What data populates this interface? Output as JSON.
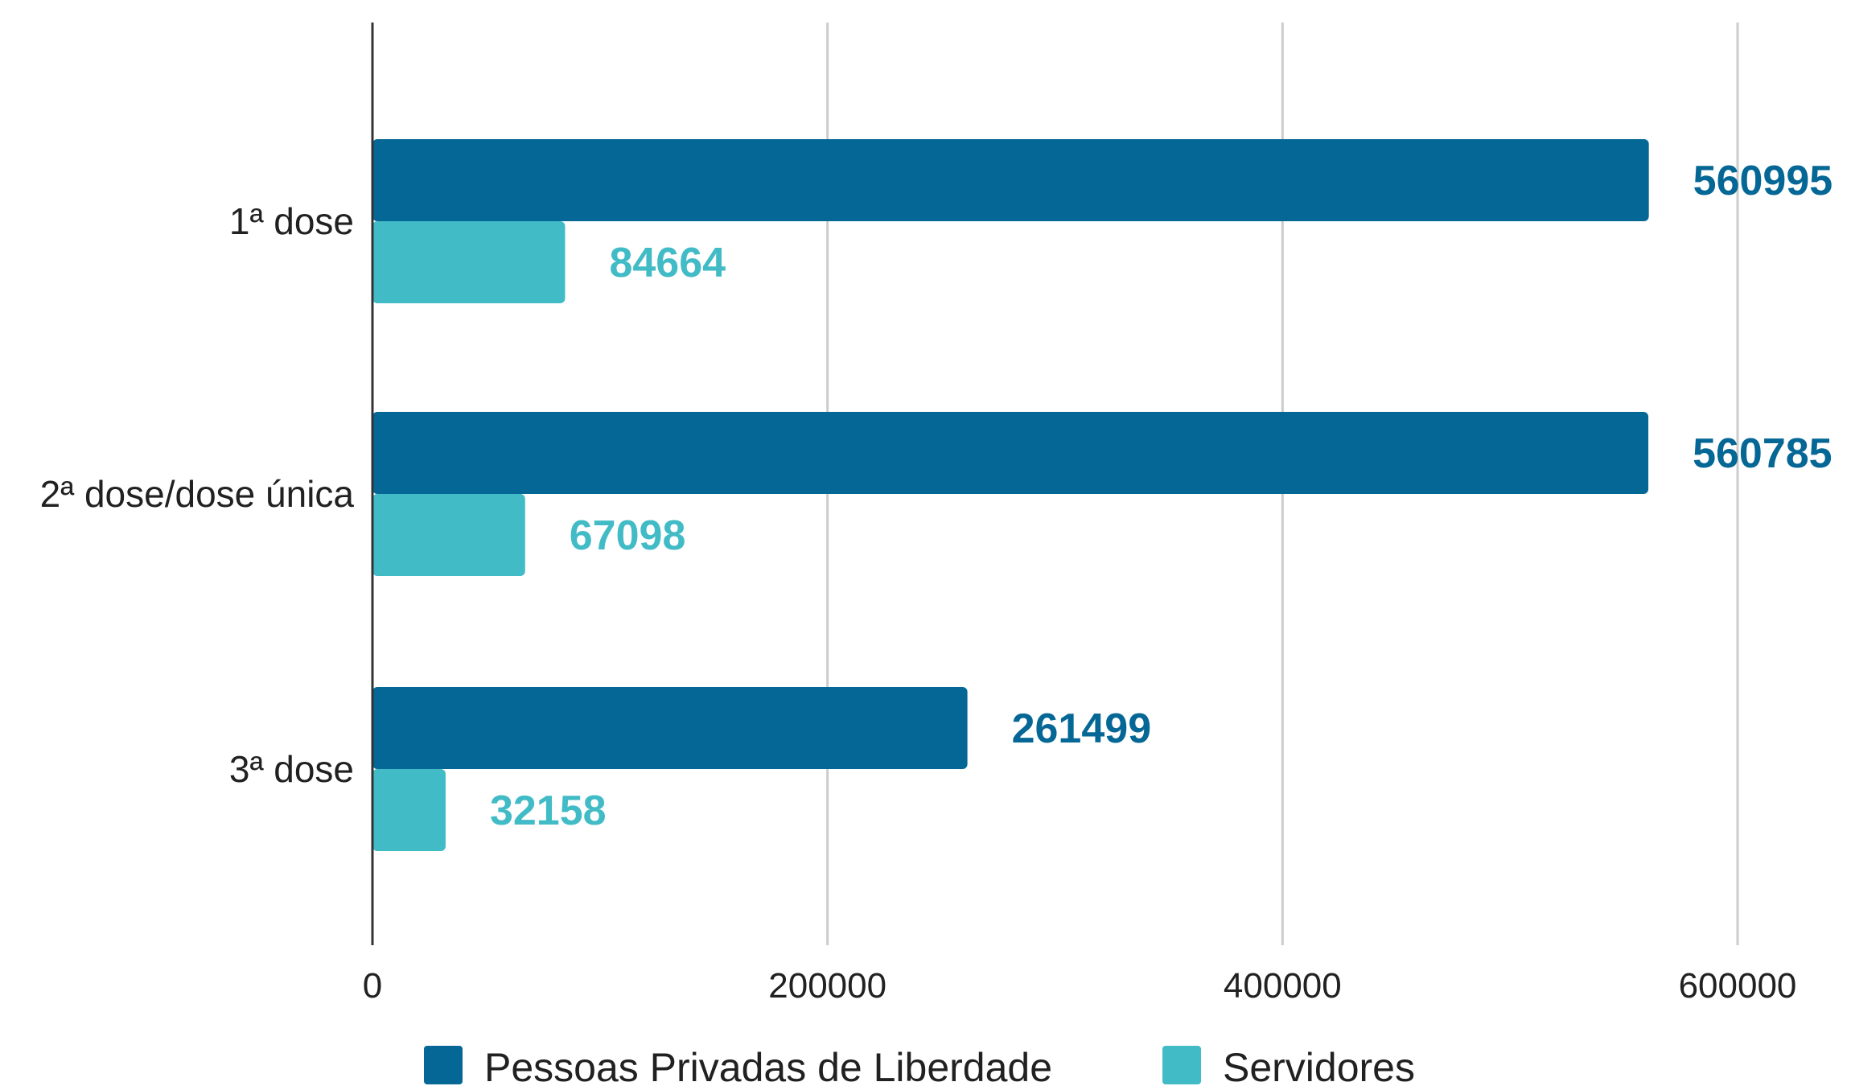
{
  "chart_data": {
    "type": "bar",
    "orientation": "horizontal",
    "categories": [
      "1ª dose",
      "2ª dose/dose única",
      "3ª dose"
    ],
    "series": [
      {
        "name": "Pessoas Privadas de Liberdade",
        "color": "#056795",
        "values": [
          560995,
          560785,
          261499
        ],
        "labels": [
          "560995",
          "560785",
          "261499"
        ]
      },
      {
        "name": "Servidores",
        "color": "#41BBC6",
        "values": [
          84664,
          67098,
          32158
        ],
        "labels": [
          "84664",
          "67098",
          "32158"
        ]
      }
    ],
    "xlim": [
      0,
      600000
    ],
    "xticks": [
      0,
      200000,
      400000,
      600000
    ],
    "xtick_labels": [
      "0",
      "200000",
      "400000",
      "600000"
    ],
    "grid": "vertical",
    "legend": "bottom",
    "colors": {
      "gridline": "#cccccc",
      "axis": "#333333"
    }
  }
}
